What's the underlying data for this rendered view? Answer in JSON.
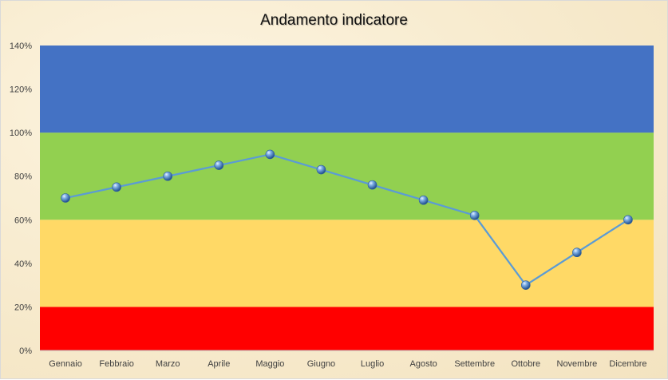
{
  "chart_data": {
    "type": "line",
    "title": "Andamento indicatore",
    "xlabel": "",
    "ylabel": "",
    "categories": [
      "Gennaio",
      "Febbraio",
      "Marzo",
      "Aprile",
      "Maggio",
      "Giugno",
      "Luglio",
      "Agosto",
      "Settembre",
      "Ottobre",
      "Novembre",
      "Dicembre"
    ],
    "series": [
      {
        "values": [
          0.7,
          0.75,
          0.8,
          0.85,
          0.9,
          0.83,
          0.76,
          0.69,
          0.62,
          0.3,
          0.45,
          0.6
        ],
        "color": "#5b9bd5"
      }
    ],
    "ylim": [
      0,
      1.4
    ],
    "y_ticks": [
      "0%",
      "20%",
      "40%",
      "60%",
      "80%",
      "100%",
      "120%",
      "140%"
    ],
    "y_tick_values": [
      0,
      0.2,
      0.4,
      0.6,
      0.8,
      1.0,
      1.2,
      1.4
    ],
    "bands": [
      {
        "from": 0.0,
        "to": 0.2,
        "color": "#ff0000"
      },
      {
        "from": 0.2,
        "to": 0.6,
        "color": "#ffd966"
      },
      {
        "from": 0.6,
        "to": 1.0,
        "color": "#92d050"
      },
      {
        "from": 1.0,
        "to": 1.4,
        "color": "#4472c4"
      }
    ],
    "grid": false,
    "legend": "none"
  }
}
